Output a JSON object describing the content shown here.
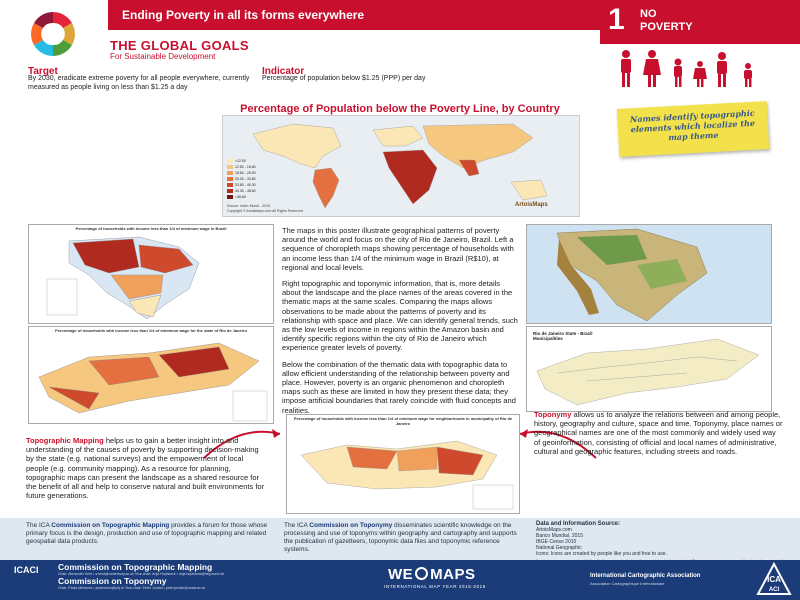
{
  "header": {
    "title": "Ending Poverty in all its forms everywhere",
    "goal_number": "1",
    "goal_name_line1": "NO",
    "goal_name_line2": "POVERTY",
    "brand_title": "THE GLOBAL GOALS",
    "brand_subtitle": "For Sustainable Development"
  },
  "target": {
    "heading": "Target",
    "text": "By 2030, eradicate extreme poverty for all people everywhere,  currently measured as people living on less than $1.25 a day"
  },
  "indicator": {
    "heading": "Indicator",
    "text": "Percentage of population below $1.25 (PPP) per day"
  },
  "world_map": {
    "heading": "Percentage of Population below the Poverty Line, by Country",
    "legend": [
      "<12.50",
      "12.50 - 18.60",
      "18.60 - 25.00",
      "25.00 - 33.80",
      "33.80 - 40.30",
      "40.30 - 48.60",
      ">48.60"
    ],
    "legend_colors": [
      "#fbe7b5",
      "#f6c77f",
      "#f0a05a",
      "#e3703e",
      "#cf4a2c",
      "#b02a1f",
      "#7a1412"
    ],
    "source": "Source: Index Mundi - 2015",
    "copyright": "Copyright © ArtoisMaps.com All Rights Reserved",
    "brand": "ArtoisMaps"
  },
  "note": {
    "text": "Names identify topographic elements which localize the map theme"
  },
  "maps": {
    "brazil_title": "Percentage of households with income less than 1/4 of minimum wage in Brazil",
    "rj_state_title": "Percentage of households with income less than 1/4 of minimum wage for the state of Rio de Janeiro",
    "rj_city_title": "Percentage of households with income less than 1/4 of minimum wage for neighborhoods in municipality of Rio de Janeiro",
    "rj_topo_title": "Rio de Janeiro State - Brazil",
    "rj_topo_subtitle": "Municipalities"
  },
  "body": {
    "p1": "The maps in this poster illustrate geographical patterns of poverty around the world and focus on the city of Rio de Janeiro, Brazil. Left a sequence of choropleth maps showing percentage of households with an income less than 1/4 of the minimum wage in Brazil (R$10), at regional and local levels.",
    "p2": "Right topographic and toponymic information, that is, more details about the landscape and the place names of the areas covered in the thematic maps at the same scales. Comparing the maps allows observations to be made about the patterns of poverty and its relationship with space and place. We can identify  general trends, such as the low levels of income in regions within the Amazon basin and identify specific regions within the city of Rio de Janeiro which experience greater levels of poverty.",
    "p3": "Below the combination of the thematic data with topographic data to allow efficient understanding of the relationship between poverty and place. However, poverty is an organic phenomenon and choropleth maps such as these are limited in how they present these data; they impose artificial boundaries that rarely coincide with fluid concepts and realities."
  },
  "topographic": {
    "highlight": "Topographic Mapping",
    "text": " helps us to gain a better insight into and understanding of the causes of poverty by supporting decision-making by the state (e.g. national surveys) and the empowerment of local people (e.g. community mapping). As a resource for planning, topographic maps can present the landscape as a shared resource for the benefit of all and help to conserve natural and built environments for future generations."
  },
  "toponymy": {
    "highlight": "Toponymy",
    "text": " allows us to analyze the relations between and among people, history, geography and culture, space and time. Toponymy, place names or geographical names are one of the most commonly and widely used way of geoinformation, consisting of official and local names of administrative, cultural and geographic features, including streets and roads."
  },
  "commissions": {
    "topo_pre": "The ICA ",
    "topo_name": "Commission on Topographic Mapping",
    "topo_text": " provides a forum for those whose primary focus is the  design, production and use of topographic mapping and related geospatial data products.",
    "topon_pre": "The ICA ",
    "topon_name": "Commission on Toponymy",
    "topon_text": " disseminates scientific knowledge on the processing and use of toponyms within geography and cartography and supports the publication of gazetteers, toponymic data files and toponymic reference systems."
  },
  "sources": {
    "heading": "Data and Information Source:",
    "lines": [
      "ArtoisMaps.com",
      "Banco Mundial, 2015",
      "IBGE Censo 2010",
      "National Geographic",
      "Icons: Icons are created by people like you and free to use."
    ],
    "fine_print": "Boundaries on maps may not be definitive. Furthermore, no implication with respect to legal status is intended. The borders and names shown and the designations used on this map do not imply official endorsement or acceptance by the United Nations. The ICA acknowledges that there may be different opinions on this subject."
  },
  "footer": {
    "icaci": "ICACI",
    "comm1": "Commission on Topographic Mapping",
    "comm1_sub": "Chair: Alexander Kent  •  a.kent@canterbury.ac.uk   Vice-chair: Anja Hopfstock  •  anja.hopfstock@bkg.bund.de",
    "comm2": "Commission on Toponymy",
    "comm2_sub": "Chair: Paulo Menezes  •  pmenezes@ufrj.br   Vice-chair: Peter Jordan  •  peter.jordan@oeaw.ac.at",
    "wemaps_pre": "WE",
    "wemaps_post": "MAPS",
    "wemaps_sub": "INTERNATIONAL MAP YEAR 2015-2016",
    "ica_name": "International Cartographic Association",
    "ica_sub": "Association Cartographique Internationale",
    "ica_logo_top": "ICA",
    "ica_logo_bottom": "ACI"
  }
}
